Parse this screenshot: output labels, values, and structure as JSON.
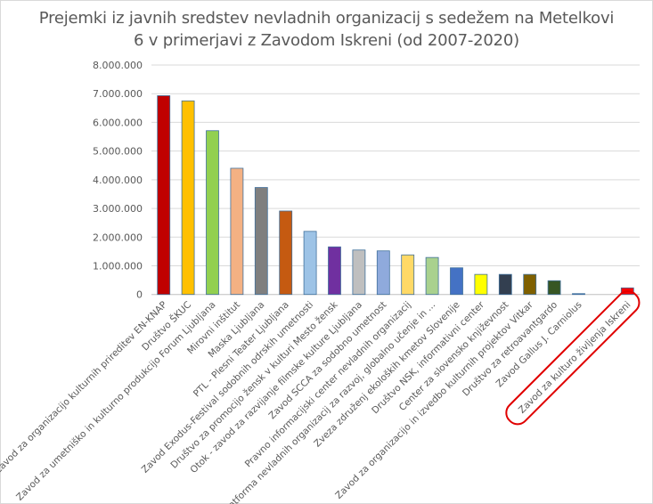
{
  "chart_data": {
    "type": "bar",
    "title_line1": "Prejemki iz javnih sredstev nevladnih  organizacij s sedežem na Metelkovi",
    "title_line2": "6 v primerjavi z Zavodom Iskreni (od 2007-2020)",
    "xlabel": "",
    "ylabel": "",
    "ylim": [
      0,
      8000000
    ],
    "yticks": [
      0,
      1000000,
      2000000,
      3000000,
      4000000,
      5000000,
      6000000,
      7000000,
      8000000
    ],
    "ytick_labels": [
      "0",
      "1.000.000",
      "2.000.000",
      "3.000.000",
      "4.000.000",
      "5.000.000",
      "6.000.000",
      "7.000.000",
      "8.000.000"
    ],
    "grid": true,
    "categories": [
      "Zavod za organizacijo kulturnih prireditev EN-KNAP",
      "Društvo ŠKUC",
      "Zavod za umetniško in kulturno produkcijo Forum Ljubljana",
      "Mirovni inštitut",
      "Maska Ljubljana",
      "PTL - Plesni Teater Ljubljana",
      "Zavod Exodus-Festival sodobnih odrskih umetnosti",
      "Društvo za promocijo žensk v kulturi Mesto žensk",
      "Otok - zavod za razvijanje filmske kulture Ljubljana",
      "Zavod SCCA za sodobno umetnost",
      "Pravno informacijski center nevladnih organizacij",
      "Platforma nevladnih organizacij za razvoj, globalno učenje in ...",
      "Zveza združenj ekoloških kmetov Slovenije",
      "Društvo NSK, informativni center",
      "Center za slovensko književnost",
      "Zavod za organizacijo in izvedbo kulturnih projektov Vitkar",
      "Društvo za retroavantgardo",
      "Zavod Gallus J. Carniolus",
      "",
      "Zavod za kulturo življenja Iskreni"
    ],
    "values": [
      6930000,
      6750000,
      5710000,
      4400000,
      3730000,
      2910000,
      2200000,
      1660000,
      1550000,
      1520000,
      1380000,
      1290000,
      930000,
      700000,
      700000,
      700000,
      480000,
      30000,
      0,
      230000
    ],
    "colors": [
      "#C00000",
      "#FFC000",
      "#92D050",
      "#F4B183",
      "#7F7F7F",
      "#C55A11",
      "#9DC3E6",
      "#7030A0",
      "#BFBFBF",
      "#8FAADC",
      "#FFD966",
      "#A9D18E",
      "#4472C4",
      "#FFFF00",
      "#333F50",
      "#7F6000",
      "#375623",
      "#4472C4",
      "#FFFFFF",
      "#FF0000"
    ],
    "highlighted_category": "Zavod za kulturo življenja Iskreni",
    "highlight_color": "#E00000",
    "legend": "none"
  }
}
